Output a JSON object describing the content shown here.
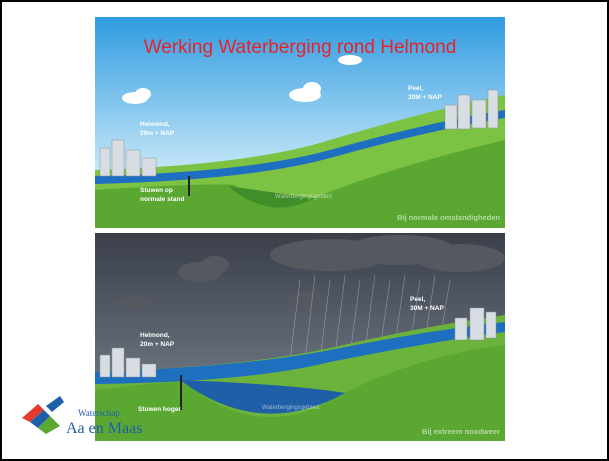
{
  "title": "Werking Waterberging rond Helmond",
  "panels": [
    {
      "peel": "Peel,",
      "peel_height": "30M + NAP",
      "helmond": "Helmond,",
      "helmond_height": "20m + NAP",
      "weir_line1": "Stuwen op",
      "weir_line2": "normale stand",
      "basin": "Waterbergingsgebied",
      "caption": "Bij normale omstandigheden"
    },
    {
      "peel": "Peel,",
      "peel_height": "30M + NAP",
      "helmond": "Helmond,",
      "helmond_height": "20m + NAP",
      "weir_line1": "Stuwen hoger",
      "basin": "Waterbergingsgebied",
      "caption": "Bij extreem noodweer"
    }
  ],
  "logo": {
    "line1": "Waterschap",
    "line2": "Aa en Maas"
  }
}
